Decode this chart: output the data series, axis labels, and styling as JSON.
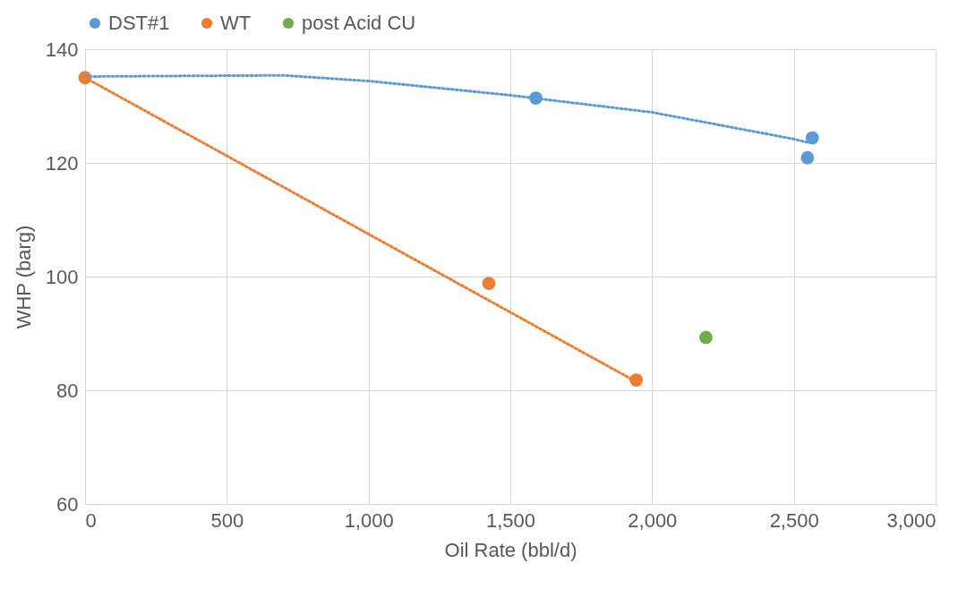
{
  "chart_data": {
    "type": "scatter",
    "xlabel": "Oil Rate (bbl/d)",
    "ylabel": "WHP (barg)",
    "xlim": [
      0,
      3000
    ],
    "ylim": [
      60,
      140
    ],
    "xticks": [
      0,
      500,
      {
        "value": 1000,
        "label": "1,000"
      },
      {
        "value": 1500,
        "label": "1,500"
      },
      {
        "value": 2000,
        "label": "2,000"
      },
      {
        "value": 2500,
        "label": "2,500"
      },
      {
        "value": 3000,
        "label": "3,000"
      }
    ],
    "yticks": [
      60,
      80,
      100,
      120,
      140
    ],
    "grid": true,
    "legend": "top",
    "marker": "circle",
    "series": [
      {
        "name": "DST#1",
        "color": "#5b9bd5",
        "x": [
          1590,
          2548,
          2565
        ],
        "values": [
          131.4,
          120.9,
          124.4
        ]
      },
      {
        "name": "WT",
        "color": "#ed7d31",
        "x": [
          0,
          1424,
          1944
        ],
        "values": [
          135,
          98.8,
          81.8
        ]
      },
      {
        "name": "post Acid CU",
        "color": "#70ad47",
        "x": [
          2190
        ],
        "values": [
          89.3
        ]
      },
      {
        "type": "line",
        "color": "#5b9bd5",
        "line_style": "dotted",
        "marker": "none",
        "x": [
          0,
          700,
          1000,
          1500,
          2000,
          2500,
          2548
        ],
        "values": [
          135.2,
          135.4,
          134.4,
          131.9,
          128.9,
          124.2,
          123.6
        ]
      },
      {
        "type": "line",
        "color": "#ed7d31",
        "line_style": "dotted",
        "marker": "none",
        "x": [
          0,
          1944
        ],
        "values": [
          135,
          81.5
        ]
      }
    ]
  }
}
